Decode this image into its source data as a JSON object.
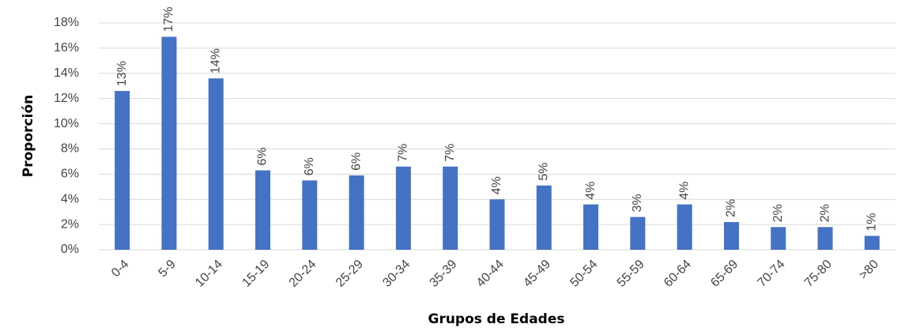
{
  "chart_data": {
    "type": "bar",
    "x_label": "Grupos de Edades",
    "y_label": "Proporción",
    "categories": [
      "0-4",
      "5-9",
      "10-14",
      "15-19",
      "20-24",
      "25-29",
      "30-34",
      "35-39",
      "40-44",
      "45-49",
      "50-54",
      "55-59",
      "60-64",
      "65-69",
      "70-74",
      "75-80",
      ">80"
    ],
    "values": [
      12.6,
      16.9,
      13.6,
      6.3,
      5.5,
      5.9,
      6.6,
      6.6,
      4.0,
      5.1,
      3.6,
      2.6,
      3.6,
      2.2,
      1.8,
      1.8,
      1.1
    ],
    "value_labels": [
      "13%",
      "17%",
      "14%",
      "6%",
      "6%",
      "6%",
      "7%",
      "7%",
      "4%",
      "5%",
      "4%",
      "3%",
      "4%",
      "2%",
      "2%",
      "2%",
      "1%"
    ],
    "color": "#4472c4",
    "ylim": [
      0,
      18
    ],
    "yticks": [
      {
        "value": 0,
        "label": "0%"
      },
      {
        "value": 2,
        "label": "2%"
      },
      {
        "value": 4,
        "label": "4%"
      },
      {
        "value": 6,
        "label": "6%"
      },
      {
        "value": 8,
        "label": "8%"
      },
      {
        "value": 10,
        "label": "10%"
      },
      {
        "value": 12,
        "label": "12%"
      },
      {
        "value": 14,
        "label": "14%"
      },
      {
        "value": 16,
        "label": "16%"
      },
      {
        "value": 18,
        "label": "18%"
      }
    ],
    "grid": true
  }
}
